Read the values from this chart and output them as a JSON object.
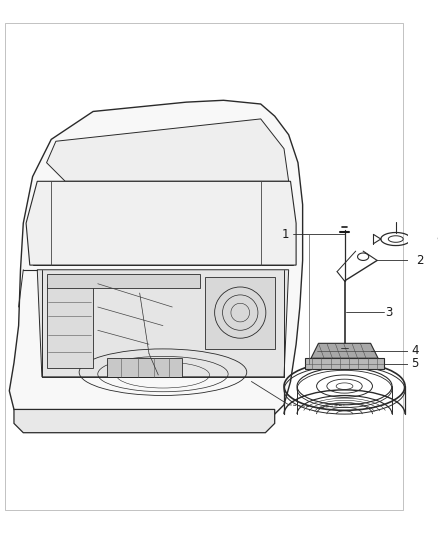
{
  "background_color": "#ffffff",
  "line_color": "#2a2a2a",
  "label_color": "#1a1a1a",
  "figsize": [
    4.38,
    5.33
  ],
  "dpi": 100,
  "border_color": "#cccccc",
  "car_fill": "#f0f0f0",
  "tire_fill": "#e8e8e8",
  "gray_fill": "#d0d0d0"
}
